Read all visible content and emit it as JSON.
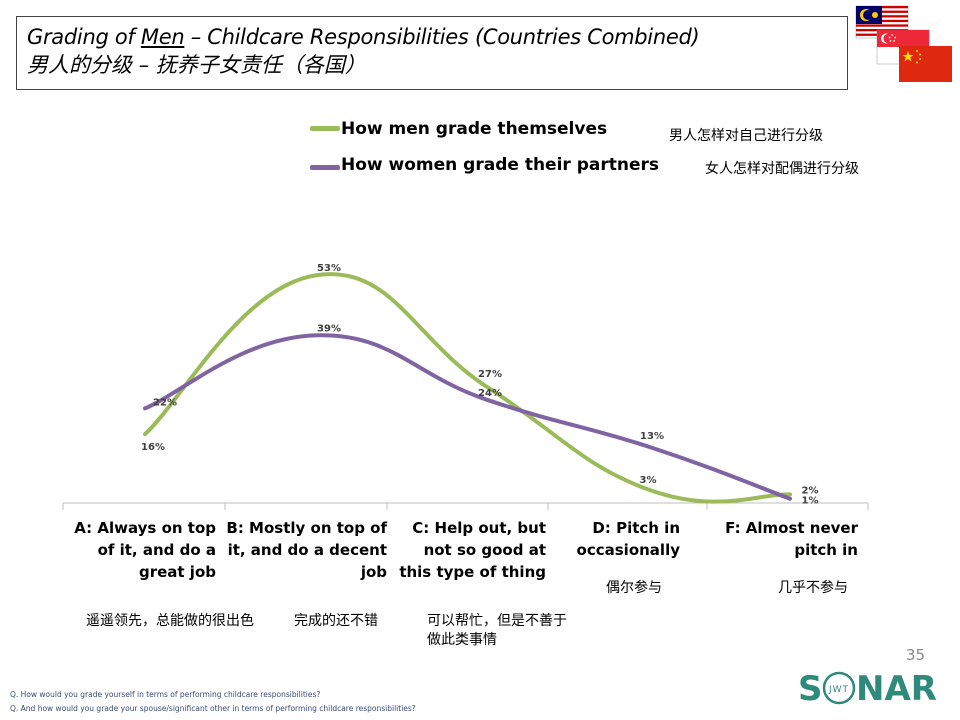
{
  "title": {
    "en_prefix": "Grading of ",
    "en_underlined": "Men",
    "en_suffix": " – Childcare Responsibilities (Countries Combined)",
    "cn": "男人的分级 – 抚养子女责任（各国）"
  },
  "flags": [
    "malaysia-flag",
    "singapore-flag",
    "china-flag"
  ],
  "legend": {
    "men_label": "How men grade themselves",
    "women_label": "How women grade their partners",
    "men_cn": "男人怎样对自己进行分级",
    "women_cn": "女人怎样对配偶进行分级"
  },
  "categories_cn": [
    "遥遥领先，总能做的很出色",
    "完成的还不错",
    "可以帮忙，但是不善于做此类事情",
    "偶尔参与",
    "几乎不参与"
  ],
  "chart_data": {
    "type": "line",
    "smooth": true,
    "categories": [
      "A: Always on top of it, and do a great job",
      "B: Mostly on top of it, and do a decent job",
      "C: Help out, but not so good at this type of thing",
      "D: Pitch in occasionally",
      "F: Almost never pitch in"
    ],
    "series": [
      {
        "name": "How men grade themselves",
        "color": "#9bbb59",
        "values": [
          16,
          53,
          27,
          3,
          2
        ],
        "labels": [
          "16%",
          "53%",
          "27%",
          "3%",
          "2%"
        ]
      },
      {
        "name": "How women grade their partners",
        "color": "#8064a2",
        "values": [
          22,
          39,
          24,
          13,
          1
        ],
        "labels": [
          "22%",
          "39%",
          "24%",
          "13%",
          "1%"
        ]
      }
    ],
    "ylim": [
      0,
      60
    ],
    "grid": false,
    "legend": "top"
  },
  "footer": {
    "q1": "Q. How would you grade yourself in terms of performing childcare responsibilities?",
    "q2": "Q. And how would you grade your spouse/significant other in terms of performing childcare responsibilities?"
  },
  "page_number": "35",
  "logo": {
    "main": "S",
    "mid": "NAR",
    "sub": "JWT"
  }
}
